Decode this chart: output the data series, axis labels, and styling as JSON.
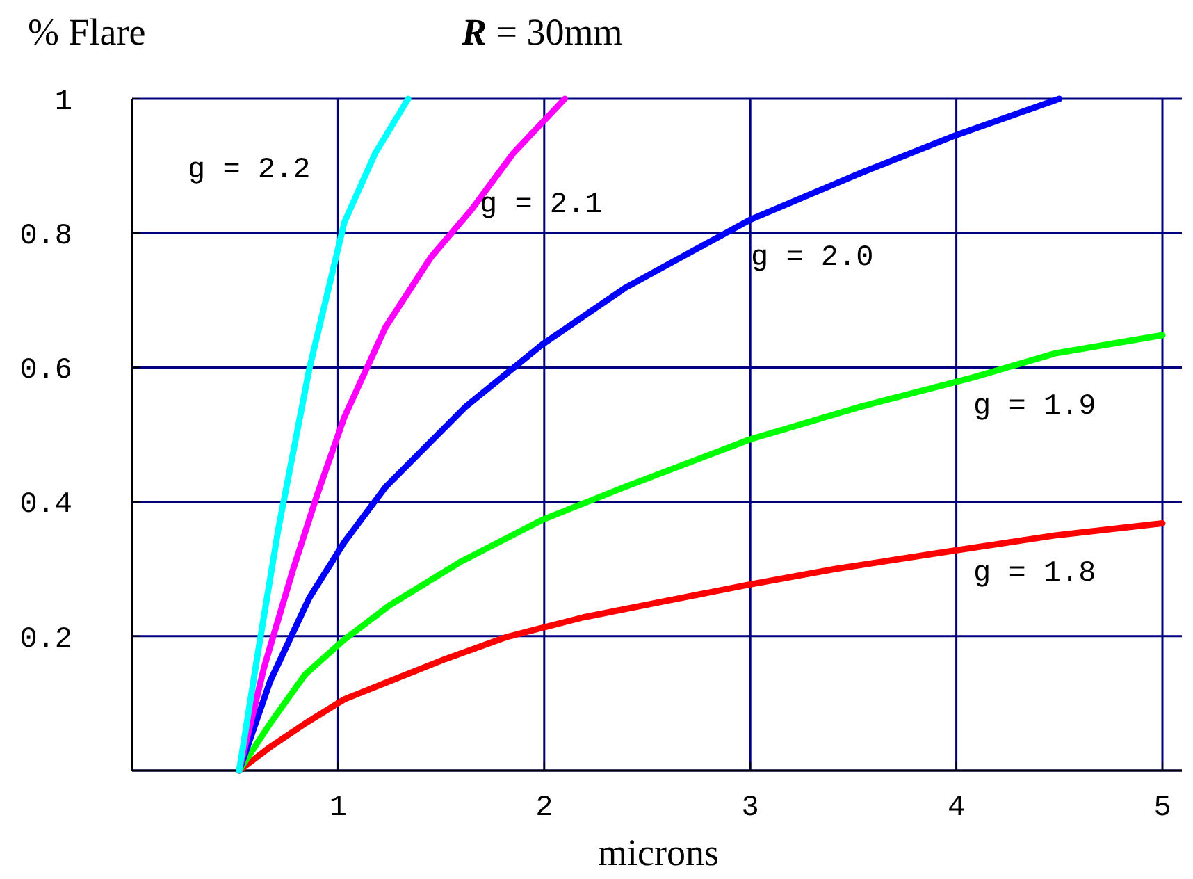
{
  "chart_data": {
    "type": "line",
    "title": "R = 30mm",
    "ylabel": "% Flare",
    "xlabel": "microns",
    "xlim": [
      0,
      5
    ],
    "ylim": [
      0,
      1
    ],
    "xticks": [
      1,
      2,
      3,
      4,
      5
    ],
    "yticks": [
      {
        "value": 0,
        "label": null
      },
      0.2,
      0.4,
      0.6,
      0.8,
      1
    ],
    "grid": true,
    "line_style": "solid",
    "series": [
      {
        "name": "g = 1.8",
        "color": "#ff0000",
        "x": [
          0.52,
          0.67,
          0.84,
          1.03,
          1.25,
          1.52,
          1.82,
          2.19,
          2.6,
          3.0,
          3.41,
          3.94,
          4.48,
          5.0
        ],
        "values": [
          0,
          0.035,
          0.07,
          0.106,
          0.133,
          0.166,
          0.199,
          0.228,
          0.253,
          0.277,
          0.3,
          0.325,
          0.35,
          0.368
        ]
      },
      {
        "name": "g = 1.9",
        "color": "#00ff00",
        "x": [
          0.52,
          0.67,
          0.84,
          1.03,
          1.25,
          1.59,
          1.99,
          2.39,
          3.0,
          3.54,
          4.08,
          4.48,
          5.0
        ],
        "values": [
          0,
          0.07,
          0.143,
          0.195,
          0.246,
          0.31,
          0.373,
          0.422,
          0.493,
          0.542,
          0.585,
          0.621,
          0.648
        ]
      },
      {
        "name": "g = 2.0",
        "color": "#0000ff",
        "x": [
          0.52,
          0.67,
          0.86,
          1.03,
          1.23,
          1.62,
          1.99,
          2.39,
          3.0,
          3.54,
          4.0,
          4.5
        ],
        "values": [
          0,
          0.133,
          0.257,
          0.34,
          0.422,
          0.542,
          0.634,
          0.718,
          0.82,
          0.89,
          0.946,
          1.0
        ]
      },
      {
        "name": "g = 2.1",
        "color": "#ff00ff",
        "x": [
          0.52,
          0.64,
          0.78,
          0.9,
          1.03,
          1.23,
          1.45,
          1.65,
          1.85,
          2.1
        ],
        "values": [
          0,
          0.153,
          0.298,
          0.412,
          0.526,
          0.66,
          0.764,
          0.836,
          0.919,
          1.0
        ]
      },
      {
        "name": "g = 2.2",
        "color": "#00ffff",
        "x": [
          0.52,
          0.61,
          0.71,
          0.86,
          1.03,
          1.18,
          1.34
        ],
        "values": [
          0,
          0.174,
          0.36,
          0.598,
          0.816,
          0.919,
          1.0
        ]
      }
    ]
  }
}
